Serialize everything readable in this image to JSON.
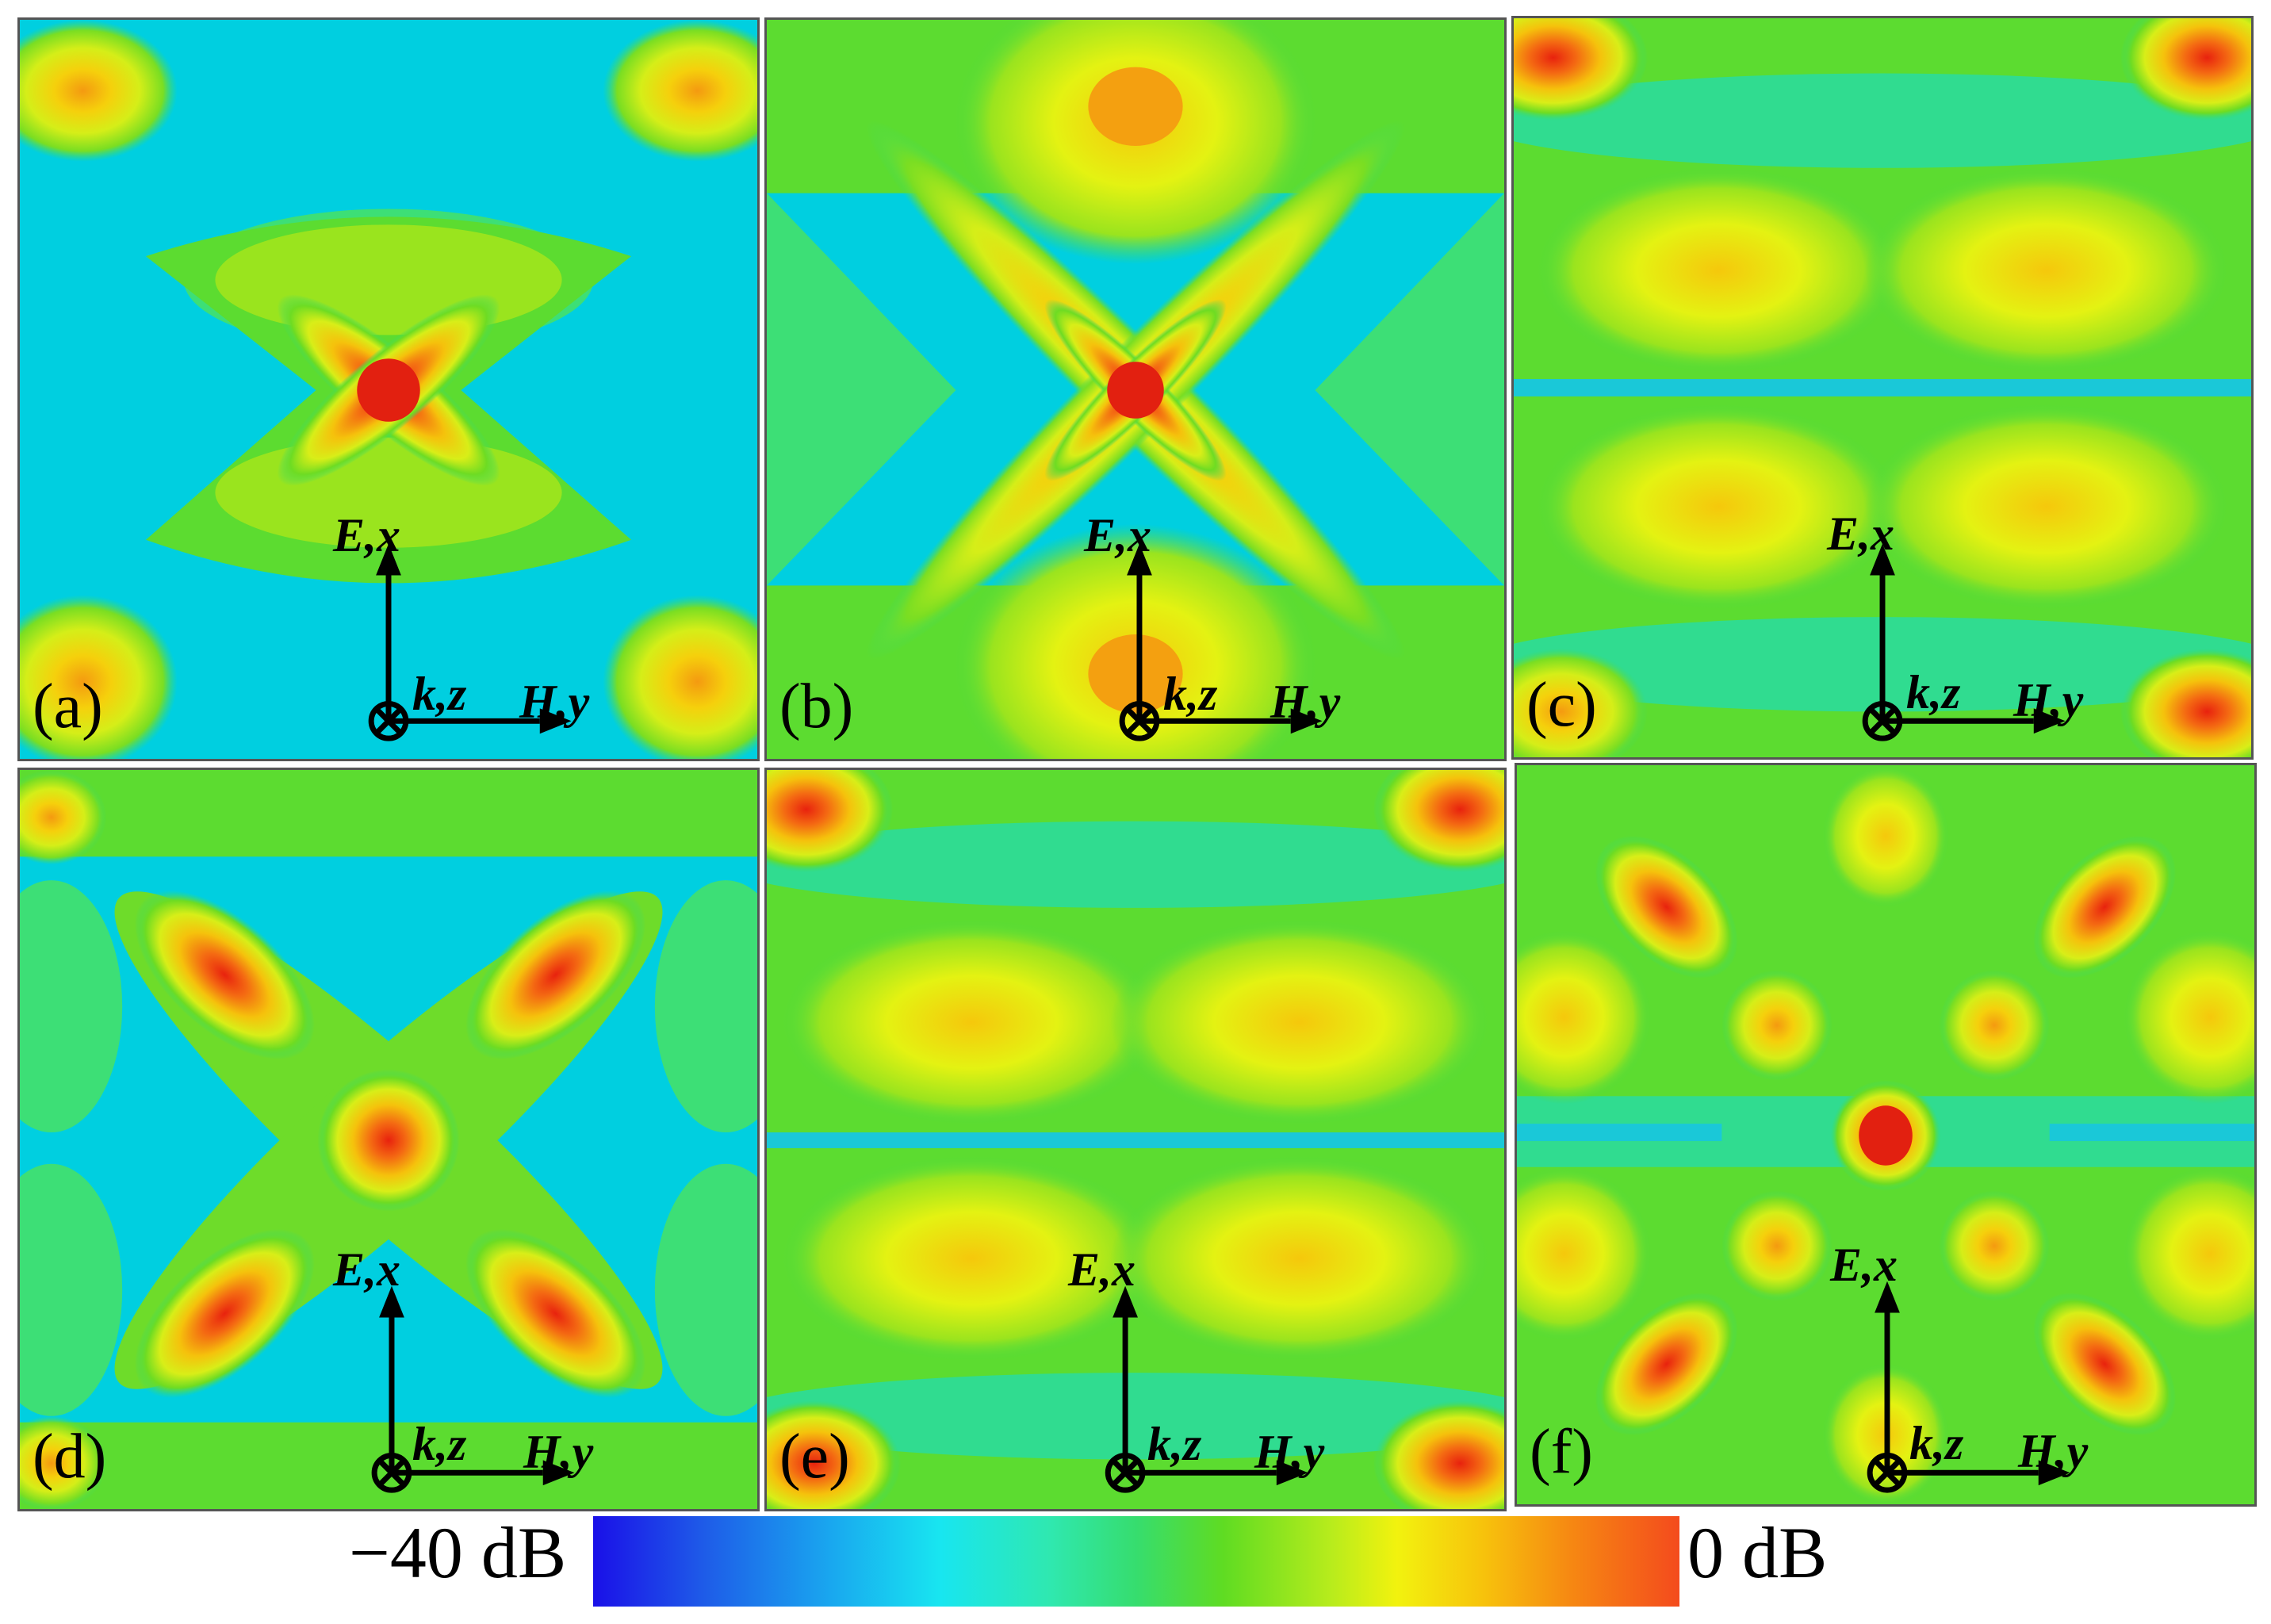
{
  "panels": [
    {
      "id": "a",
      "label": "(a)"
    },
    {
      "id": "b",
      "label": "(b)"
    },
    {
      "id": "c",
      "label": "(c)"
    },
    {
      "id": "d",
      "label": "(d)"
    },
    {
      "id": "e",
      "label": "(e)"
    },
    {
      "id": "f",
      "label": "(f)"
    }
  ],
  "axes": {
    "e_label": "E,x",
    "h_label": "H,y",
    "k_label": "k,z",
    "k_symbol_icon": "circle-cross-icon"
  },
  "colorbar": {
    "min_label": "−40 dB",
    "max_label": "0 dB",
    "colors": [
      "#1a10e8",
      "#19a8ef",
      "#18e6f0",
      "#36dd6e",
      "#f2f20e",
      "#f68812",
      "#f44b1d"
    ]
  }
}
